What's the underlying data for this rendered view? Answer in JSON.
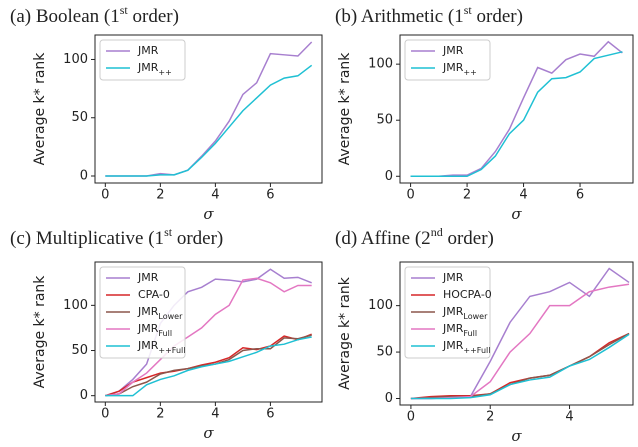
{
  "chart_data": [
    {
      "type": "line",
      "title_parts": [
        "(a)  Boolean (1",
        "st",
        " order)"
      ],
      "xlabel": "σ",
      "ylabel": "Average k* rank",
      "x": [
        0,
        0.5,
        1,
        1.5,
        2,
        2.5,
        3,
        3.5,
        4,
        4.5,
        5,
        5.5,
        6,
        6.5,
        7,
        7.5
      ],
      "xlim": [
        -0.375,
        7.875
      ],
      "xticks": [
        0,
        2,
        4,
        6
      ],
      "ylim": [
        -6,
        121
      ],
      "yticks": [
        0,
        50,
        100
      ],
      "legend": "upper left",
      "series": [
        {
          "name": "JMR",
          "color": "#a77fcf",
          "values": [
            0,
            0,
            0,
            0,
            2,
            1,
            5,
            17,
            30,
            47,
            70,
            80,
            105,
            104,
            103,
            115
          ]
        },
        {
          "name": "JMR",
          "sub": "++",
          "color": "#1fc0d3",
          "values": [
            0,
            0,
            0,
            0,
            1,
            1,
            5,
            16,
            28,
            42,
            56,
            67,
            78,
            84,
            86,
            95
          ]
        }
      ]
    },
    {
      "type": "line",
      "title_parts": [
        "(b)  Arithmetic (1",
        "st",
        " order)"
      ],
      "xlabel": "σ",
      "ylabel": "Average k* rank",
      "x": [
        0,
        0.5,
        1,
        1.5,
        2,
        2.5,
        3,
        3.5,
        4,
        4.5,
        5,
        5.5,
        6,
        6.5,
        7,
        7.5
      ],
      "xlim": [
        -0.375,
        7.875
      ],
      "xticks": [
        0,
        2,
        4,
        6
      ],
      "ylim": [
        -6,
        126
      ],
      "yticks": [
        0,
        50,
        100
      ],
      "legend": "upper left",
      "series": [
        {
          "name": "JMR",
          "color": "#a77fcf",
          "values": [
            0,
            0,
            0,
            1,
            1,
            7,
            22,
            42,
            70,
            97,
            92,
            104,
            109,
            107,
            120,
            110
          ]
        },
        {
          "name": "JMR",
          "sub": "++",
          "color": "#1fc0d3",
          "values": [
            0,
            0,
            0,
            0,
            0,
            6,
            18,
            38,
            50,
            75,
            87,
            88,
            93,
            105,
            108,
            111
          ]
        }
      ]
    },
    {
      "type": "line",
      "title_parts": [
        "(c)  Multiplicative (1",
        "st",
        " order)"
      ],
      "xlabel": "σ",
      "ylabel": "Average k* rank",
      "x": [
        0,
        0.5,
        1,
        1.5,
        2,
        2.5,
        3,
        3.5,
        4,
        4.5,
        5,
        5.5,
        6,
        6.5,
        7,
        7.5
      ],
      "xlim": [
        -0.375,
        7.875
      ],
      "xticks": [
        0,
        2,
        4,
        6
      ],
      "ylim": [
        -7,
        148
      ],
      "yticks": [
        0,
        50,
        100
      ],
      "legend": "upper left",
      "series": [
        {
          "name": "JMR",
          "color": "#a77fcf",
          "values": [
            0,
            5,
            18,
            35,
            80,
            100,
            115,
            120,
            129,
            128,
            126,
            129,
            140,
            130,
            131,
            125
          ]
        },
        {
          "name": "CPA-0",
          "color": "#d62728",
          "values": [
            0,
            5,
            15,
            20,
            25,
            27,
            30,
            34,
            37,
            42,
            53,
            51,
            55,
            66,
            62,
            68
          ]
        },
        {
          "name": "JMR",
          "sub": "Lower",
          "color": "#8c564b",
          "values": [
            0,
            2,
            10,
            15,
            24,
            28,
            30,
            33,
            35,
            40,
            50,
            52,
            52,
            64,
            63,
            67
          ]
        },
        {
          "name": "JMR",
          "sub": "Full",
          "color": "#e377c2",
          "values": [
            0,
            2,
            15,
            25,
            40,
            55,
            65,
            75,
            90,
            100,
            128,
            130,
            125,
            115,
            122,
            122
          ]
        },
        {
          "name": "JMR",
          "sub": "++Full",
          "color": "#1fc0d3",
          "values": [
            0,
            0,
            0,
            12,
            18,
            22,
            28,
            32,
            35,
            38,
            43,
            48,
            55,
            57,
            62,
            65
          ]
        }
      ]
    },
    {
      "type": "line",
      "title_parts": [
        "(d)  Affine (2",
        "nd",
        " order)"
      ],
      "xlabel": "σ",
      "ylabel": "Average k* rank",
      "x": [
        0,
        0.5,
        1,
        1.5,
        2,
        2.5,
        3,
        3.5,
        4,
        4.5,
        5,
        5.5
      ],
      "xlim": [
        -0.275,
        5.6
      ],
      "xticks": [
        0,
        2,
        4
      ],
      "ylim": [
        -7,
        147
      ],
      "yticks": [
        0,
        50,
        100
      ],
      "legend": "upper left",
      "series": [
        {
          "name": "JMR",
          "color": "#a77fcf",
          "values": [
            0,
            0,
            1,
            2,
            40,
            82,
            110,
            115,
            125,
            110,
            140,
            125
          ]
        },
        {
          "name": "HOCPA-0",
          "color": "#d62728",
          "values": [
            0,
            2,
            3,
            3,
            5,
            17,
            22,
            25,
            35,
            45,
            60,
            70
          ]
        },
        {
          "name": "JMR",
          "sub": "Lower",
          "color": "#8c564b",
          "values": [
            0,
            1,
            2,
            2,
            5,
            15,
            22,
            25,
            35,
            45,
            58,
            70
          ]
        },
        {
          "name": "JMR",
          "sub": "Full",
          "color": "#e377c2",
          "values": [
            0,
            0,
            1,
            2,
            18,
            50,
            70,
            100,
            100,
            115,
            120,
            123
          ]
        },
        {
          "name": "JMR",
          "sub": "++Full",
          "color": "#1fc0d3",
          "values": [
            0,
            0,
            0,
            1,
            4,
            15,
            20,
            23,
            35,
            42,
            55,
            69
          ]
        }
      ]
    }
  ]
}
